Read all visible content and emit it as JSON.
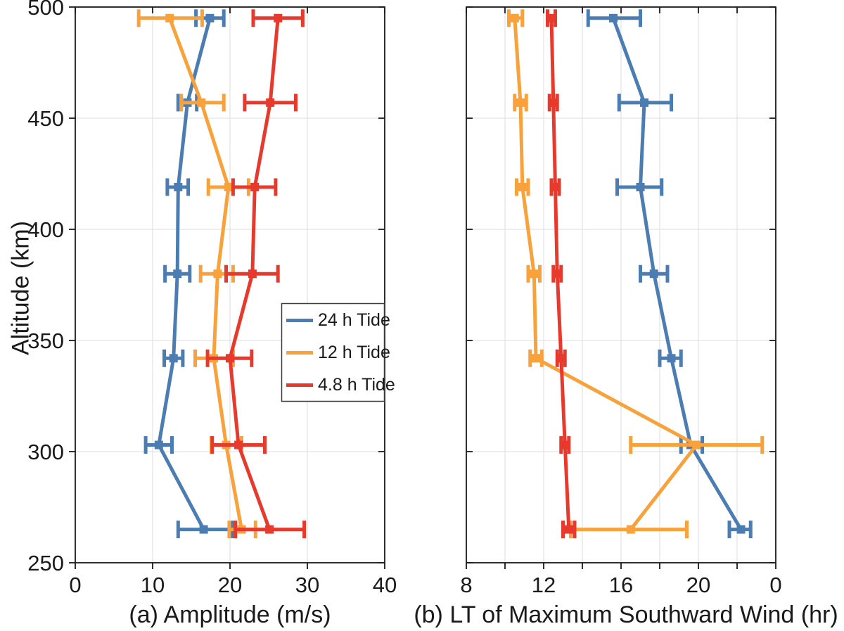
{
  "figure": {
    "background": "#ffffff",
    "axis_color": "#1a1a1a",
    "grid_color": "#e3e3e3",
    "ylabel": "Altitude (km)"
  },
  "legend": {
    "border_color": "#3c3c3c",
    "entries": [
      {
        "label": "24 h Tide",
        "color": "#4b7db3"
      },
      {
        "label": "12 h Tide",
        "color": "#f9a13b"
      },
      {
        "label": "4.8 h Tide",
        "color": "#e8392d"
      }
    ]
  },
  "chart_data": [
    {
      "type": "line",
      "name": "amplitude-panel",
      "xlabel": "(a) Amplitude (m/s)",
      "ylabel": "Altitude (km)",
      "xlim": [
        0,
        40
      ],
      "ylim": [
        250,
        500
      ],
      "xticks": [
        0,
        10,
        20,
        30,
        40
      ],
      "xtick_labels": [
        "0",
        "10",
        "20",
        "30",
        "40"
      ],
      "xgrid": [
        10,
        20,
        30
      ],
      "yticks": [
        250,
        300,
        350,
        400,
        450,
        500
      ],
      "ytick_labels": [
        "250",
        "300",
        "350",
        "400",
        "450",
        "500"
      ],
      "ygrid": [
        300,
        350,
        400,
        450
      ],
      "altitudes": [
        495,
        457,
        419,
        380,
        342,
        303,
        265
      ],
      "grid": true,
      "legend_position": "inside-right-middle",
      "series": [
        {
          "name": "24 h Tide",
          "color": "#4b7db3",
          "values": [
            17.4,
            14.5,
            13.3,
            13.2,
            12.7,
            10.8,
            16.6
          ],
          "err_lo": [
            15.6,
            13.3,
            11.9,
            11.6,
            11.5,
            9.1,
            13.3
          ],
          "err_hi": [
            19.2,
            15.7,
            14.6,
            14.8,
            13.9,
            12.5,
            20.3
          ]
        },
        {
          "name": "12 h Tide",
          "color": "#f9a13b",
          "values": [
            12.2,
            16.3,
            19.8,
            18.4,
            17.9,
            19.5,
            21.5
          ],
          "err_lo": [
            8.2,
            13.7,
            17.2,
            16.2,
            15.5,
            17.6,
            19.9
          ],
          "err_hi": [
            16.4,
            19.2,
            22.4,
            20.4,
            20.4,
            21.5,
            23.3
          ]
        },
        {
          "name": "4.8 h Tide",
          "color": "#e8392d",
          "values": [
            26.2,
            25.2,
            23.2,
            22.9,
            20.0,
            21.1,
            25.1
          ],
          "err_lo": [
            23.0,
            21.9,
            20.4,
            19.5,
            17.1,
            17.7,
            20.7
          ],
          "err_hi": [
            29.4,
            28.5,
            25.9,
            26.2,
            22.8,
            24.5,
            29.6
          ]
        }
      ]
    },
    {
      "type": "line",
      "name": "local-time-panel",
      "xlabel": "(b) LT of Maximum Southward Wind (hr)",
      "ylabel": "Altitude (km)",
      "xlim": [
        8,
        24
      ],
      "ylim": [
        250,
        500
      ],
      "xticks": [
        8,
        10,
        12,
        14,
        16,
        18,
        20,
        22,
        24
      ],
      "xtick_labels": [
        "8",
        "",
        "12",
        "",
        "16",
        "",
        "20",
        "",
        "0"
      ],
      "xgrid": [
        10,
        12,
        14,
        16,
        18,
        20,
        22
      ],
      "yticks": [
        250,
        300,
        350,
        400,
        450,
        500
      ],
      "ytick_labels": [
        "",
        "",
        "",
        "",
        "",
        ""
      ],
      "ygrid": [
        300,
        350,
        400,
        450
      ],
      "altitudes": [
        495,
        457,
        419,
        380,
        342,
        303,
        265
      ],
      "grid": true,
      "series": [
        {
          "name": "24 h Tide",
          "color": "#4b7db3",
          "values": [
            15.6,
            17.2,
            17.0,
            17.7,
            18.6,
            19.6,
            22.2
          ],
          "err_lo": [
            14.3,
            15.9,
            15.8,
            17.0,
            18.0,
            19.1,
            21.6
          ],
          "err_hi": [
            17.0,
            18.6,
            18.1,
            18.4,
            19.1,
            20.2,
            22.7
          ]
        },
        {
          "name": "12 h Tide",
          "color": "#f9a13b",
          "values": [
            10.5,
            10.8,
            10.9,
            11.5,
            11.6,
            19.9,
            16.5
          ],
          "err_lo": [
            10.2,
            10.5,
            10.6,
            11.2,
            11.3,
            16.5,
            13.4
          ],
          "err_hi": [
            10.9,
            11.1,
            11.2,
            11.8,
            11.9,
            23.3,
            19.4
          ]
        },
        {
          "name": "4.8 h Tide",
          "color": "#e8392d",
          "values": [
            12.4,
            12.5,
            12.6,
            12.7,
            12.9,
            13.1,
            13.3
          ],
          "err_lo": [
            12.2,
            12.3,
            12.4,
            12.5,
            12.7,
            12.9,
            13.0
          ],
          "err_hi": [
            12.6,
            12.7,
            12.8,
            12.9,
            13.1,
            13.3,
            13.6
          ]
        }
      ]
    }
  ]
}
